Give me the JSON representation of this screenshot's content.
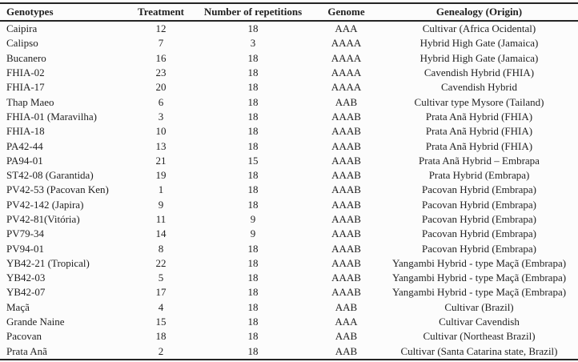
{
  "colors": {
    "background": "#fcfcfc",
    "text": "#1f1f1f",
    "rule": "#242424"
  },
  "table": {
    "column_keys": [
      "genotype",
      "treatment",
      "repetitions",
      "genome",
      "genealogy"
    ],
    "headers": [
      "Genotypes",
      "Treatment",
      "Number of repetitions",
      "Genome",
      "Genealogy (Origin)"
    ],
    "rows": [
      [
        "Caipira",
        "12",
        "18",
        "AAA",
        "Cultivar (Africa Ocidental)"
      ],
      [
        "Calipso",
        "7",
        "3",
        "AAAA",
        "Hybrid High Gate (Jamaica)"
      ],
      [
        "Bucanero",
        "16",
        "18",
        "AAAA",
        "Hybrid High Gate (Jamaica)"
      ],
      [
        "FHIA-02",
        "23",
        "18",
        "AAAA",
        "Cavendish Hybrid (FHIA)"
      ],
      [
        "FHIA-17",
        "20",
        "18",
        "AAAA",
        "Cavendish Hybrid"
      ],
      [
        "Thap Maeo",
        "6",
        "18",
        "AAB",
        "Cultivar type Mysore (Tailand)"
      ],
      [
        "FHIA-01 (Maravilha)",
        "3",
        "18",
        "AAAB",
        "Prata Anã Hybrid (FHIA)"
      ],
      [
        "FHIA-18",
        "10",
        "18",
        "AAAB",
        "Prata Anã Hybrid (FHIA)"
      ],
      [
        "PA42-44",
        "13",
        "18",
        "AAAB",
        "Prata Anã Hybrid (FHIA)"
      ],
      [
        "PA94-01",
        "21",
        "15",
        "AAAB",
        "Prata Anã Hybrid – Embrapa"
      ],
      [
        "ST42-08 (Garantida)",
        "19",
        "18",
        "AAAB",
        "Prata Hybrid (Embrapa)"
      ],
      [
        "PV42-53 (Pacovan Ken)",
        "1",
        "18",
        "AAAB",
        "Pacovan Hybrid (Embrapa)"
      ],
      [
        "PV42-142 (Japira)",
        "9",
        "18",
        "AAAB",
        "Pacovan Hybrid (Embrapa)"
      ],
      [
        "PV42-81(Vitória)",
        "11",
        "9",
        "AAAB",
        "Pacovan Hybrid (Embrapa)"
      ],
      [
        "PV79-34",
        "14",
        "9",
        "AAAB",
        "Pacovan Hybrid (Embrapa)"
      ],
      [
        "PV94-01",
        "8",
        "18",
        "AAAB",
        "Pacovan Hybrid (Embrapa)"
      ],
      [
        "YB42-21 (Tropical)",
        "22",
        "18",
        "AAAB",
        "Yangambi Hybrid - type Maçã (Embrapa)"
      ],
      [
        "YB42-03",
        "5",
        "18",
        "AAAB",
        "Yangambi Hybrid - type Maçã (Embrapa)"
      ],
      [
        "YB42-07",
        "17",
        "18",
        "AAAB",
        "Yangambi Hybrid - type Maçã (Embrapa)"
      ],
      [
        "Maçã",
        "4",
        "18",
        "AAB",
        "Cultivar (Brazil)"
      ],
      [
        "Grande Naine",
        "15",
        "18",
        "AAA",
        "Cultivar Cavendish"
      ],
      [
        "Pacovan",
        "18",
        "18",
        "AAB",
        "Cultivar (Northeast Brazil)"
      ],
      [
        "Prata Anã",
        "2",
        "18",
        "AAB",
        "Cultivar (Santa Catarina state, Brazil)"
      ]
    ]
  }
}
